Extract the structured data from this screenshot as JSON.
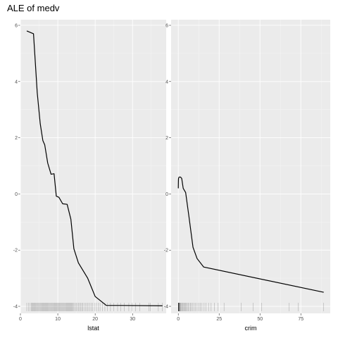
{
  "title": "ALE of medv",
  "chart_data": [
    {
      "type": "line",
      "xlabel": "lstat",
      "ylabel": "",
      "xlim": [
        0,
        39
      ],
      "ylim": [
        -4.25,
        6.2
      ],
      "x_ticks": [
        0,
        10,
        20,
        30
      ],
      "y_ticks": [
        -4,
        -2,
        0,
        2,
        4,
        6
      ],
      "grid": true,
      "series": [
        {
          "x": [
            1.7,
            3.5,
            4.5,
            5.3,
            6.0,
            6.5,
            7.3,
            8.2,
            9.0,
            9.6,
            10.3,
            11.3,
            12.5,
            13.5,
            14.3,
            15.5,
            18.0,
            20.0,
            23.0,
            26.7,
            38.0
          ],
          "y": [
            5.8,
            5.7,
            3.6,
            2.5,
            1.9,
            1.75,
            1.1,
            0.7,
            0.72,
            -0.08,
            -0.12,
            -0.35,
            -0.37,
            -0.9,
            -1.95,
            -2.45,
            -3.0,
            -3.65,
            -3.97,
            -3.97,
            -3.98
          ]
        }
      ],
      "rug": [
        1.7,
        2.2,
        2.6,
        2.9,
        3.1,
        3.3,
        3.5,
        3.7,
        3.9,
        4.1,
        4.3,
        4.5,
        4.7,
        4.9,
        5.1,
        5.3,
        5.5,
        5.7,
        5.9,
        6.1,
        6.3,
        6.5,
        6.7,
        6.9,
        7.1,
        7.3,
        7.5,
        7.7,
        7.9,
        8.1,
        8.3,
        8.5,
        8.7,
        8.9,
        9.1,
        9.3,
        9.5,
        9.7,
        9.9,
        10.1,
        10.3,
        10.5,
        10.7,
        10.9,
        11.1,
        11.3,
        11.5,
        11.7,
        11.9,
        12.1,
        12.3,
        12.5,
        12.7,
        12.9,
        13.1,
        13.3,
        13.5,
        13.7,
        13.9,
        14.1,
        14.3,
        14.6,
        14.9,
        15.2,
        15.5,
        15.8,
        16.1,
        16.4,
        16.7,
        17.0,
        17.4,
        17.8,
        18.1,
        18.5,
        18.9,
        19.3,
        19.8,
        20.3,
        20.8,
        21.3,
        21.9,
        22.6,
        23.3,
        24.1,
        25.0,
        26.0,
        26.8,
        27.8,
        29.0,
        29.9,
        30.8,
        31.9,
        34.4,
        34.8,
        36.9,
        38.0
      ]
    },
    {
      "type": "line",
      "xlabel": "crim",
      "ylabel": "",
      "xlim": [
        -4.4,
        93
      ],
      "ylim": [
        -4.25,
        6.2
      ],
      "x_ticks": [
        0,
        25,
        50,
        75
      ],
      "y_ticks": [
        -4,
        -2,
        0,
        2,
        4,
        6
      ],
      "grid": true,
      "series": [
        {
          "x": [
            0.0,
            0.02,
            0.05,
            0.09,
            0.15,
            0.3,
            0.55,
            0.9,
            1.4,
            2.1,
            3.0,
            4.5,
            6.5,
            9.0,
            11.5,
            15.5,
            89.0
          ],
          "y": [
            0.2,
            0.3,
            0.4,
            0.5,
            0.55,
            0.58,
            0.6,
            0.6,
            0.6,
            0.55,
            0.2,
            0.05,
            -0.8,
            -1.9,
            -2.3,
            -2.6,
            -3.5
          ]
        }
      ],
      "rug": [
        0.01,
        0.03,
        0.05,
        0.07,
        0.09,
        0.12,
        0.15,
        0.2,
        0.25,
        0.3,
        0.4,
        0.5,
        0.6,
        0.7,
        0.8,
        1.0,
        1.2,
        1.5,
        1.8,
        2.2,
        2.6,
        3.0,
        3.5,
        4.0,
        4.5,
        5.0,
        5.5,
        6.0,
        6.7,
        7.4,
        8.0,
        8.8,
        9.5,
        10.5,
        11.5,
        12.5,
        13.5,
        14.5,
        15.8,
        17.0,
        18.5,
        20.1,
        22.0,
        24.4,
        28.0,
        38.4,
        45.7,
        51.1,
        67.9,
        73.5,
        89.0
      ]
    }
  ]
}
